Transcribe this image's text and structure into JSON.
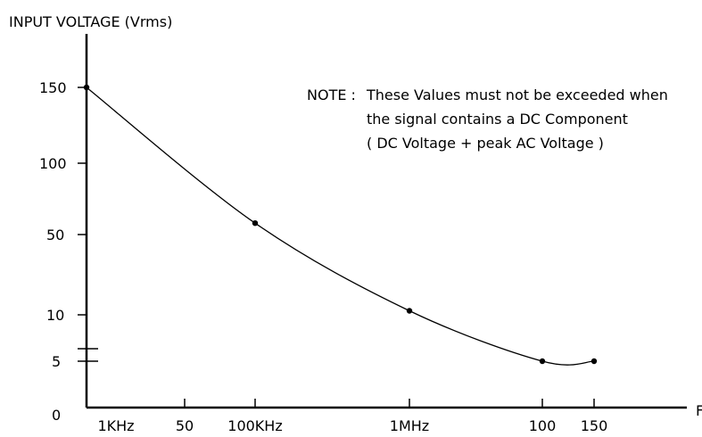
{
  "chart_data": {
    "type": "line",
    "title": "",
    "ylabel": "INPUT VOLTAGE (Vrms)",
    "xlabel": "F",
    "y_ticks": [
      "150",
      "100",
      "50",
      "10",
      "5",
      "0"
    ],
    "x_ticks": [
      "1KHz",
      "50",
      "100KHz",
      "1MHz",
      "100",
      "150"
    ],
    "points": [
      {
        "x": "1KHz",
        "y": 150
      },
      {
        "x": "100KHz",
        "y": 58
      },
      {
        "x": "1MHz",
        "y": 12
      },
      {
        "x": "100",
        "y": 5
      },
      {
        "x": "150",
        "y": 5
      }
    ],
    "grid": false,
    "legend": "none"
  },
  "note": {
    "label": "NOTE :",
    "lines": [
      "These Values must not be exceeded when",
      "the signal contains a DC Component",
      "( DC Voltage + peak AC Voltage )"
    ]
  }
}
